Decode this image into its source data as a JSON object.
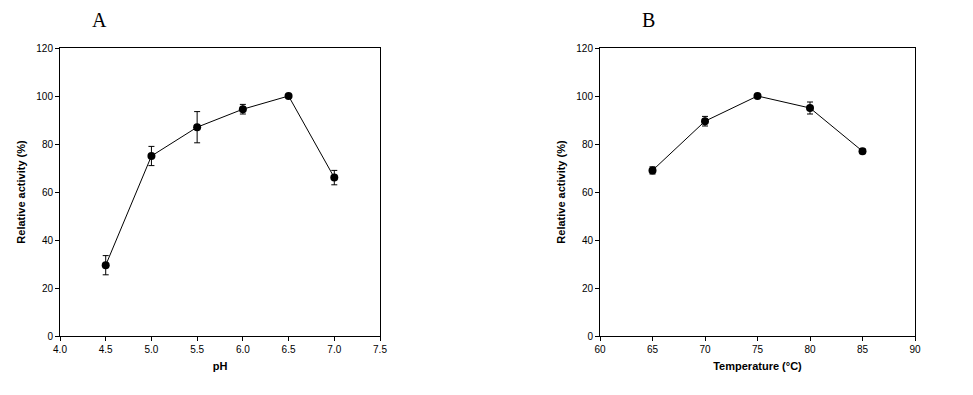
{
  "chart_data": [
    {
      "type": "line",
      "title": "A",
      "x_label": "pH",
      "y_label": "Relative activity (%)",
      "x": [
        4.5,
        5.0,
        5.5,
        6.0,
        6.5,
        7.0
      ],
      "values": [
        29.5,
        75,
        87,
        94.5,
        100,
        66
      ],
      "error": [
        4,
        4,
        6.5,
        2,
        0,
        3
      ],
      "color": "#000000",
      "marker": "circle",
      "line_style": "solid",
      "grid": false,
      "xlim": [
        4.0,
        7.5
      ],
      "xticks": [
        {
          "value": 4.0,
          "label": "4.0"
        },
        {
          "value": 4.5,
          "label": "4.5"
        },
        {
          "value": 5.0,
          "label": "5.0"
        },
        {
          "value": 5.5,
          "label": "5.5"
        },
        {
          "value": 6.0,
          "label": "6.0"
        },
        {
          "value": 6.5,
          "label": "6.5"
        },
        {
          "value": 7.0,
          "label": "7.0"
        },
        {
          "value": 7.5,
          "label": "7.5"
        }
      ],
      "ylim": [
        0,
        120
      ],
      "yticks": [
        0,
        20,
        40,
        60,
        80,
        100,
        120
      ]
    },
    {
      "type": "line",
      "title": "B",
      "x_label": "Temperature (°C)",
      "y_label": "Relative activity (%)",
      "x": [
        65,
        70,
        75,
        80,
        85
      ],
      "values": [
        69,
        89.5,
        100,
        95,
        77
      ],
      "error": [
        1.5,
        2,
        0,
        2.5,
        1
      ],
      "color": "#000000",
      "marker": "circle",
      "line_style": "solid",
      "grid": false,
      "xlim": [
        60,
        90
      ],
      "xticks": [
        60,
        65,
        70,
        75,
        80,
        85,
        90
      ],
      "ylim": [
        0,
        120
      ],
      "yticks": [
        0,
        20,
        40,
        60,
        80,
        100,
        120
      ]
    }
  ]
}
